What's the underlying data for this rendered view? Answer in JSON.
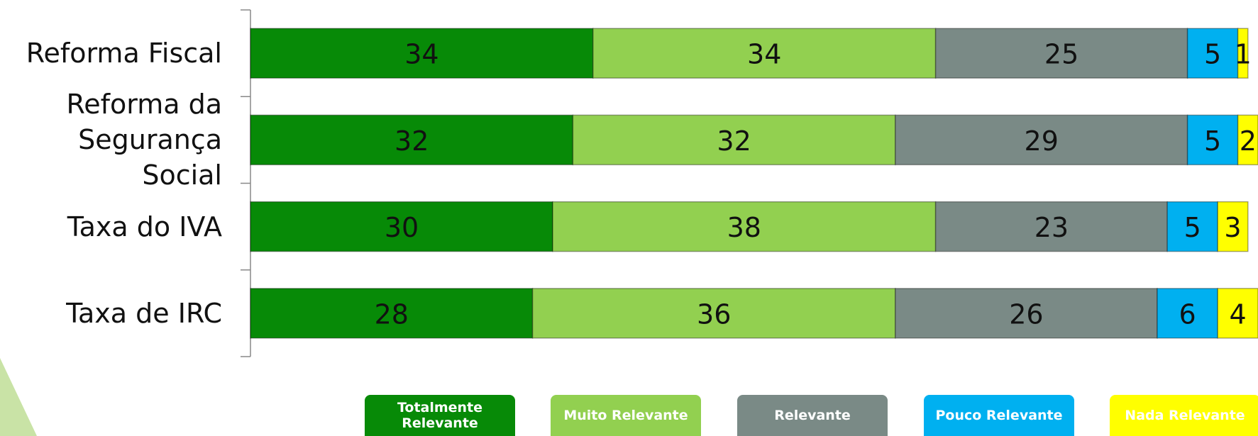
{
  "chart_data": {
    "type": "bar",
    "orientation": "horizontal",
    "stacked": true,
    "categories": [
      "Reforma Fiscal",
      "Reforma da Segurança Social",
      "Taxa do IVA",
      "Taxa de IRC"
    ],
    "xlim": [
      0,
      100
    ],
    "series": [
      {
        "name": "Totalmente Relevante",
        "color": "#078a07",
        "values": [
          34,
          32,
          30,
          28
        ]
      },
      {
        "name": "Muito Relevante",
        "color": "#92d050",
        "values": [
          34,
          32,
          38,
          36
        ]
      },
      {
        "name": "Relevante",
        "color": "#7a8a86",
        "values": [
          25,
          29,
          23,
          26
        ]
      },
      {
        "name": "Pouco Relevante",
        "color": "#00b0f0",
        "values": [
          5,
          5,
          5,
          6
        ]
      },
      {
        "name": "Nada Relevante",
        "color": "#ffff00",
        "values": [
          1,
          2,
          3,
          4
        ]
      }
    ],
    "legend": "bottom"
  }
}
